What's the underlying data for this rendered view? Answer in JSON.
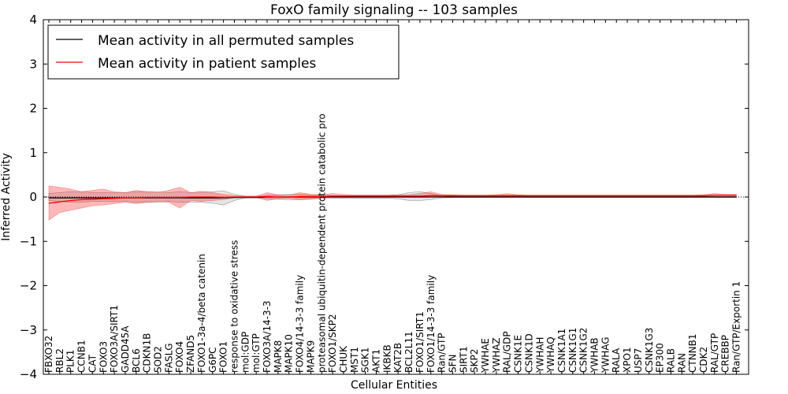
{
  "chart_data": {
    "type": "line",
    "title": "FoxO family signaling -- 103 samples",
    "xlabel": "Cellular Entities",
    "ylabel": "Inferred Activity",
    "ylim": [
      -4,
      4
    ],
    "yticks": [
      -4,
      -3,
      -2,
      -1,
      0,
      1,
      2,
      3,
      4
    ],
    "ytick_labels": [
      "−4",
      "−3",
      "−2",
      "−1",
      "0",
      "1",
      "2",
      "3",
      "4"
    ],
    "grid": false,
    "legend_placement": "top-left",
    "categories": [
      "FBXO32",
      "RBL2",
      "PLK1",
      "CCNB1",
      "CAT",
      "FOXO3",
      "FOXO3A/SIRT1",
      "GADD45A",
      "BCL6",
      "CDKN1B",
      "SOD2",
      "FASLG",
      "FOXO4",
      "ZFAND5",
      "FOXO1-3a-4/beta catenin",
      "G6PC",
      "FOXO1",
      "response to oxidative stress",
      "mol:GDP",
      "mol:GTP",
      "FOXO3A/14-3-3",
      "MAPK8",
      "MAPK10",
      "FOXO4/14-3-3 family",
      "MAPK9",
      "proteasomal ubiquitin-dependent protein catabolic pro",
      "FOXO1/SKP2",
      "CHUK",
      "MST1",
      "SGK1",
      "AKT1",
      "IKBKB",
      "KAT2B",
      "BCL2L11",
      "FOXO1/SIRT1",
      "FOXO1/14-3-3 family",
      "Ran/GTP",
      "SFN",
      "SIRT1",
      "SKP2",
      "YWHAE",
      "YWHAZ",
      "RAL/GDP",
      "CSNK1E",
      "CSNK1D",
      "YWHAH",
      "YWHAQ",
      "CSNK1A1",
      "CSNK1G1",
      "CSNK1G2",
      "YWHAB",
      "YWHAG",
      "RALA",
      "XPO1",
      "USP7",
      "CSNK1G3",
      "EP300",
      "RALB",
      "RAN",
      "CTNNB1",
      "CDK2",
      "RAL/GTP",
      "CREBBP",
      "Ran/GTP/Exportin 1"
    ],
    "series": [
      {
        "name": "Mean activity in all permuted samples",
        "color": "#000000",
        "values": [
          -0.02,
          -0.02,
          -0.02,
          -0.02,
          -0.02,
          -0.02,
          -0.02,
          -0.02,
          -0.02,
          -0.02,
          -0.02,
          -0.02,
          -0.02,
          -0.02,
          -0.02,
          -0.02,
          -0.02,
          -0.01,
          -0.01,
          -0.01,
          0.0,
          0.0,
          0.0,
          0.0,
          0.0,
          0.0,
          0.0,
          0.0,
          0.0,
          0.0,
          0.0,
          0.0,
          0.0,
          0.0,
          0.0,
          0.0,
          0.0,
          0.0,
          0.0,
          0.0,
          0.0,
          0.0,
          0.0,
          0.0,
          0.0,
          0.0,
          0.0,
          0.0,
          0.0,
          0.0,
          0.0,
          0.0,
          0.0,
          0.0,
          0.0,
          0.0,
          0.0,
          0.0,
          0.0,
          0.0,
          0.0,
          0.0,
          0.0,
          0.0
        ],
        "band_low": [
          -0.08,
          -0.1,
          -0.12,
          -0.12,
          -0.1,
          -0.1,
          -0.1,
          -0.1,
          -0.12,
          -0.12,
          -0.12,
          -0.1,
          -0.12,
          -0.12,
          -0.12,
          -0.14,
          -0.18,
          -0.08,
          -0.02,
          -0.02,
          -0.04,
          -0.05,
          -0.06,
          -0.06,
          -0.05,
          -0.04,
          -0.03,
          -0.03,
          -0.03,
          -0.03,
          -0.03,
          -0.03,
          -0.04,
          -0.08,
          -0.08,
          -0.06,
          -0.02,
          -0.01,
          -0.01,
          -0.01,
          -0.01,
          -0.01,
          -0.01,
          -0.01,
          -0.01,
          -0.01,
          -0.01,
          -0.01,
          -0.01,
          -0.01,
          -0.01,
          -0.01,
          -0.01,
          -0.01,
          -0.01,
          -0.01,
          -0.01,
          -0.01,
          -0.01,
          -0.01,
          -0.01,
          -0.01,
          -0.01,
          -0.01
        ],
        "band_high": [
          0.08,
          0.1,
          0.12,
          0.12,
          0.1,
          0.1,
          0.1,
          0.1,
          0.12,
          0.12,
          0.12,
          0.1,
          0.12,
          0.1,
          0.12,
          0.12,
          0.14,
          0.06,
          0.02,
          0.02,
          0.04,
          0.05,
          0.06,
          0.06,
          0.05,
          0.04,
          0.03,
          0.03,
          0.03,
          0.03,
          0.03,
          0.03,
          0.05,
          0.1,
          0.12,
          0.08,
          0.03,
          0.01,
          0.01,
          0.01,
          0.01,
          0.01,
          0.01,
          0.01,
          0.01,
          0.01,
          0.01,
          0.01,
          0.01,
          0.01,
          0.01,
          0.01,
          0.01,
          0.01,
          0.01,
          0.01,
          0.01,
          0.01,
          0.01,
          0.01,
          0.01,
          0.01,
          0.01,
          0.01
        ]
      },
      {
        "name": "Mean activity in patient samples",
        "color": "#ff0000",
        "values": [
          -0.14,
          -0.11,
          -0.08,
          -0.06,
          -0.05,
          -0.04,
          -0.03,
          -0.02,
          -0.02,
          -0.01,
          -0.01,
          -0.01,
          -0.01,
          0.0,
          0.0,
          0.0,
          -0.01,
          0.0,
          0.0,
          0.0,
          0.01,
          0.0,
          0.0,
          0.01,
          0.01,
          0.01,
          0.02,
          0.02,
          0.02,
          0.02,
          0.02,
          0.02,
          0.02,
          0.02,
          0.02,
          0.03,
          0.03,
          0.03,
          0.03,
          0.03,
          0.03,
          0.03,
          0.03,
          0.03,
          0.03,
          0.03,
          0.03,
          0.03,
          0.03,
          0.03,
          0.03,
          0.03,
          0.03,
          0.03,
          0.03,
          0.03,
          0.03,
          0.03,
          0.03,
          0.03,
          0.03,
          0.04,
          0.04,
          0.04
        ],
        "band_low": [
          -0.52,
          -0.35,
          -0.3,
          -0.25,
          -0.2,
          -0.18,
          -0.15,
          -0.12,
          -0.15,
          -0.12,
          -0.1,
          -0.12,
          -0.25,
          -0.08,
          -0.1,
          -0.08,
          -0.06,
          -0.02,
          -0.01,
          -0.01,
          -0.08,
          -0.04,
          -0.03,
          -0.06,
          -0.04,
          -0.02,
          0.0,
          0.0,
          0.0,
          0.0,
          0.0,
          0.0,
          0.0,
          0.0,
          0.0,
          0.0,
          0.01,
          0.01,
          0.01,
          0.01,
          0.01,
          0.01,
          0.01,
          0.01,
          0.01,
          0.01,
          0.01,
          0.01,
          0.01,
          0.01,
          0.01,
          0.01,
          0.01,
          0.01,
          0.01,
          0.01,
          0.01,
          0.01,
          0.01,
          0.01,
          0.01,
          0.01,
          0.01,
          0.02
        ],
        "band_high": [
          0.25,
          0.22,
          0.18,
          0.12,
          0.15,
          0.18,
          0.12,
          0.1,
          0.15,
          0.12,
          0.1,
          0.15,
          0.22,
          0.1,
          0.12,
          0.1,
          0.06,
          0.03,
          0.02,
          0.02,
          0.1,
          0.05,
          0.04,
          0.1,
          0.06,
          0.05,
          0.08,
          0.06,
          0.05,
          0.05,
          0.05,
          0.05,
          0.05,
          0.05,
          0.08,
          0.12,
          0.06,
          0.05,
          0.04,
          0.04,
          0.04,
          0.05,
          0.08,
          0.05,
          0.04,
          0.04,
          0.04,
          0.04,
          0.04,
          0.04,
          0.04,
          0.04,
          0.04,
          0.04,
          0.04,
          0.04,
          0.04,
          0.04,
          0.04,
          0.04,
          0.05,
          0.08,
          0.06,
          0.06
        ]
      }
    ]
  }
}
